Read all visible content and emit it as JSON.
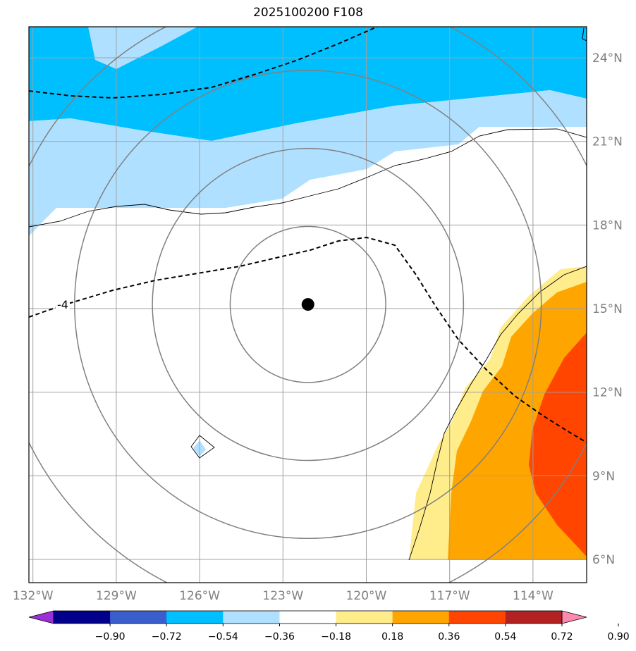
{
  "title": "2025100200 F108",
  "map": {
    "lon_range": [
      -132,
      -112
    ],
    "lat_range": [
      5,
      25
    ],
    "lon_ticks": [
      {
        "value": -132,
        "label": "132°W"
      },
      {
        "value": -129,
        "label": "129°W"
      },
      {
        "value": -126,
        "label": "126°W"
      },
      {
        "value": -123,
        "label": "123°W"
      },
      {
        "value": -120,
        "label": "120°W"
      },
      {
        "value": -117,
        "label": "117°W"
      },
      {
        "value": -114,
        "label": "114°W"
      }
    ],
    "lat_ticks": [
      {
        "value": 6,
        "label": "6°N"
      },
      {
        "value": 9,
        "label": "9°N"
      },
      {
        "value": 12,
        "label": "12°N"
      },
      {
        "value": 15,
        "label": "15°N"
      },
      {
        "value": 18,
        "label": "18°N"
      },
      {
        "value": 21,
        "label": "21°N"
      },
      {
        "value": 24,
        "label": "24°N"
      }
    ],
    "storm_center": {
      "lon": -122.1,
      "lat": 15.15
    },
    "range_rings_deg": [
      2.8,
      5.6,
      8.4,
      11.2
    ],
    "contour_label": "-4",
    "grid": true
  },
  "colorbar": {
    "colors": [
      "#9b30d9",
      "#00008b",
      "#3a5fcd",
      "#00bfff",
      "#b0e0ff",
      "#ffffff",
      "#ffec8b",
      "#ffa500",
      "#ff4500",
      "#b22222",
      "#ff88b0"
    ],
    "labels": [
      "−0.90",
      "−0.72",
      "−0.54",
      "−0.36",
      "−0.18",
      "0.18",
      "0.36",
      "0.54",
      "0.72",
      "0.90"
    ]
  }
}
